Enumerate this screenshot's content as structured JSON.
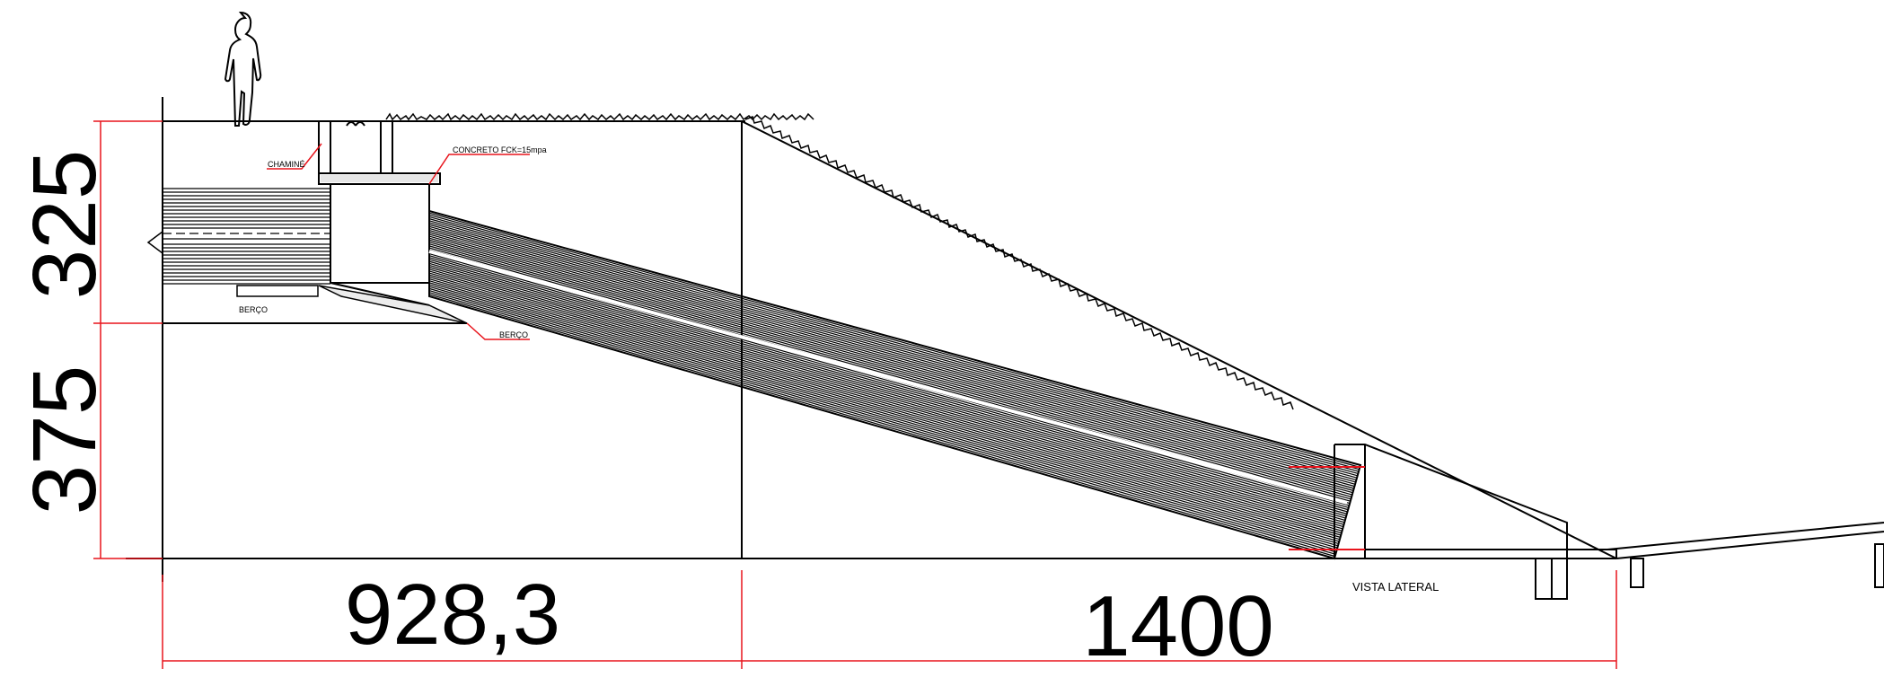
{
  "drawing": {
    "dimensions": {
      "height_top": "325",
      "height_bottom": "375",
      "length_left": "928,3",
      "length_right": "1400"
    },
    "labels": {
      "chimney": "CHAMINÉ",
      "concrete": "CONCRETO FCK=15mpa",
      "cradle_1": "BERÇO",
      "cradle_2": "BERÇO",
      "view_title": "VISTA LATERAL"
    },
    "colors": {
      "line": "#000000",
      "dimension": "#e8141c",
      "background": "#ffffff"
    },
    "icons": [
      "person-silhouette-icon",
      "grass-texture"
    ]
  }
}
